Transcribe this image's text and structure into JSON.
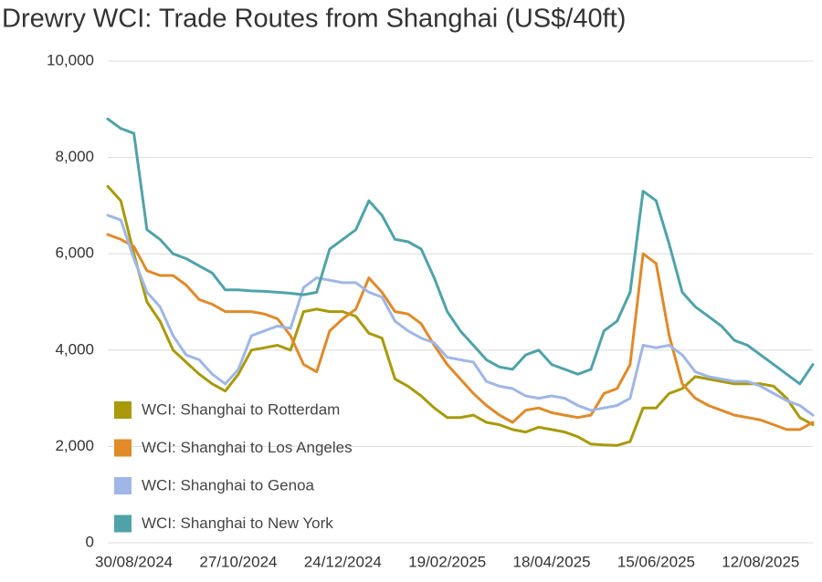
{
  "chart_data": {
    "type": "line",
    "title": "Drewry WCI: Trade Routes from Shanghai (US$/40ft)",
    "categories": [
      null,
      null,
      "30/08/2024",
      null,
      null,
      null,
      null,
      null,
      null,
      null,
      "27/10/2024",
      null,
      null,
      null,
      null,
      null,
      null,
      null,
      "24/12/2024",
      null,
      null,
      null,
      null,
      null,
      null,
      null,
      "19/02/2025",
      null,
      null,
      null,
      null,
      null,
      null,
      null,
      "18/04/2025",
      null,
      null,
      null,
      null,
      null,
      null,
      null,
      "15/06/2025",
      null,
      null,
      null,
      null,
      null,
      null,
      null,
      "12/08/2025",
      null,
      null,
      null,
      null
    ],
    "series": [
      {
        "name": "WCI: Shanghai to Rotterdam",
        "color": "#a89a0a",
        "values": [
          7400,
          7100,
          6000,
          5000,
          4600,
          4000,
          3750,
          3500,
          3300,
          3150,
          3500,
          4000,
          4050,
          4100,
          4000,
          4800,
          4850,
          4800,
          4800,
          4700,
          4350,
          4250,
          3400,
          3250,
          3050,
          2800,
          2600,
          2600,
          2650,
          2500,
          2450,
          2350,
          2300,
          2400,
          2350,
          2300,
          2200,
          2050,
          2030,
          2020,
          2100,
          2800,
          2800,
          3100,
          3200,
          3450,
          3400,
          3350,
          3300,
          3300,
          3300,
          3250,
          3000,
          2600,
          2450
        ]
      },
      {
        "name": "WCI: Shanghai to Los Angeles",
        "color": "#e08a2a",
        "values": [
          6400,
          6300,
          6150,
          5650,
          5550,
          5550,
          5350,
          5050,
          4950,
          4800,
          4800,
          4800,
          4750,
          4650,
          4300,
          3700,
          3550,
          4400,
          4650,
          4850,
          5500,
          5200,
          4800,
          4750,
          4550,
          4100,
          3700,
          3400,
          3100,
          2850,
          2650,
          2500,
          2750,
          2800,
          2700,
          2650,
          2600,
          2650,
          3100,
          3200,
          3700,
          6000,
          5800,
          4300,
          3300,
          3000,
          2850,
          2750,
          2650,
          2600,
          2550,
          2450,
          2350,
          2350,
          2500
        ]
      },
      {
        "name": "WCI: Shanghai to Genoa",
        "color": "#9fb6e6",
        "values": [
          6800,
          6700,
          5900,
          5200,
          4900,
          4300,
          3900,
          3800,
          3500,
          3300,
          3600,
          4300,
          4400,
          4500,
          4450,
          5300,
          5500,
          5450,
          5400,
          5400,
          5200,
          5100,
          4600,
          4400,
          4250,
          4150,
          3850,
          3800,
          3750,
          3350,
          3250,
          3200,
          3050,
          3000,
          3050,
          3000,
          2850,
          2750,
          2800,
          2850,
          3000,
          4100,
          4050,
          4100,
          3900,
          3550,
          3450,
          3400,
          3350,
          3350,
          3250,
          3100,
          2950,
          2850,
          2650
        ]
      },
      {
        "name": "WCI: Shanghai to New York",
        "color": "#4fa3a8",
        "values": [
          8800,
          8600,
          8500,
          6500,
          6300,
          6000,
          5900,
          5750,
          5600,
          5250,
          5250,
          5230,
          5220,
          5200,
          5180,
          5150,
          5200,
          6100,
          6300,
          6500,
          7100,
          6800,
          6300,
          6250,
          6100,
          5500,
          4800,
          4400,
          4100,
          3800,
          3650,
          3600,
          3900,
          4000,
          3700,
          3600,
          3500,
          3600,
          4400,
          4600,
          5200,
          7300,
          7100,
          6200,
          5200,
          4900,
          4700,
          4500,
          4200,
          4100,
          3900,
          3700,
          3500,
          3300,
          3700
        ]
      }
    ],
    "ylim": [
      0,
      10000
    ],
    "yticks": [
      0,
      {
        "value": 2000,
        "label": "2,000"
      },
      {
        "value": 4000,
        "label": "4,000"
      },
      {
        "value": 6000,
        "label": "6,000"
      },
      {
        "value": 8000,
        "label": "8,000"
      },
      {
        "value": 10000,
        "label": "10,000"
      }
    ],
    "grid": true,
    "legend": "lower left"
  }
}
